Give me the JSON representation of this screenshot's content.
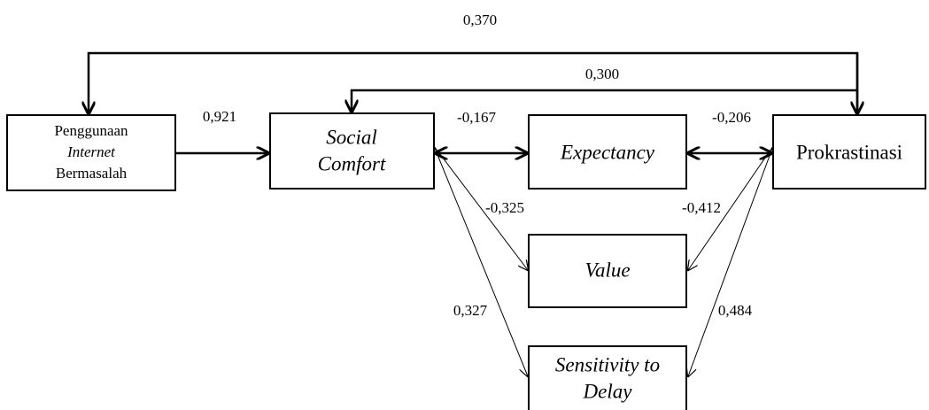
{
  "nodes": [
    {
      "lines": [
        "Penggunaan",
        "Internet",
        "Bermasalah"
      ]
    },
    {
      "lines": [
        "Social",
        "Comfort"
      ]
    },
    {
      "lines": [
        "Expectancy"
      ]
    },
    {
      "lines": [
        "Prokrastinasi"
      ]
    },
    {
      "lines": [
        "Value"
      ]
    },
    {
      "lines": [
        "Sensitivity to",
        "Delay"
      ]
    }
  ],
  "edges": [
    {
      "label": "0,370"
    },
    {
      "label": "0,300"
    },
    {
      "label": "0,921"
    },
    {
      "label": "-0,167"
    },
    {
      "label": "-0,206"
    },
    {
      "label": "-0,325"
    },
    {
      "label": "-0,412"
    },
    {
      "label": "0,327"
    },
    {
      "label": "0,484"
    }
  ]
}
